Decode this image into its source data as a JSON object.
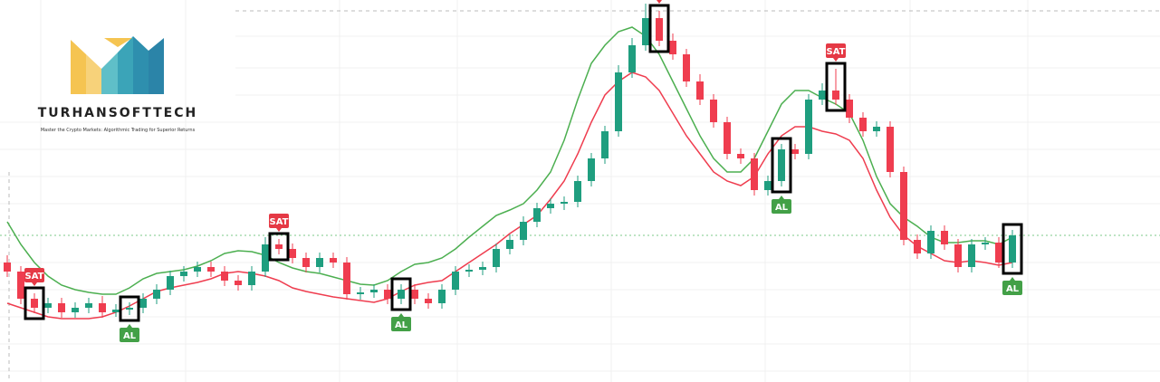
{
  "brand": {
    "name": "TURHANSOFTTECH",
    "tagline": "Master the Crypto Markets: Algorithmic Trading for Superior Returns"
  },
  "chart_data": {
    "type": "candlestick",
    "ylim": [
      0,
      422
    ],
    "up_color": "#1f9e7f",
    "down_color": "#ef3d4f",
    "candles": [
      [
        132,
        140,
        116,
        122
      ],
      [
        122,
        128,
        86,
        92
      ],
      [
        92,
        98,
        76,
        82
      ],
      [
        82,
        93,
        76,
        87
      ],
      [
        87,
        93,
        71,
        77
      ],
      [
        77,
        88,
        71,
        82
      ],
      [
        82,
        93,
        76,
        87
      ],
      [
        87,
        95,
        71,
        77
      ],
      [
        77,
        86,
        72,
        80
      ],
      [
        80,
        88,
        74,
        82
      ],
      [
        82,
        98,
        76,
        92
      ],
      [
        92,
        108,
        86,
        102
      ],
      [
        102,
        123,
        96,
        117
      ],
      [
        117,
        128,
        111,
        122
      ],
      [
        122,
        133,
        116,
        127
      ],
      [
        127,
        133,
        116,
        122
      ],
      [
        122,
        128,
        106,
        112
      ],
      [
        112,
        118,
        101,
        107
      ],
      [
        107,
        128,
        101,
        122
      ],
      [
        122,
        160,
        116,
        152
      ],
      [
        152,
        158,
        141,
        147
      ],
      [
        147,
        153,
        131,
        137
      ],
      [
        137,
        143,
        121,
        127
      ],
      [
        127,
        143,
        121,
        137
      ],
      [
        137,
        143,
        126,
        132
      ],
      [
        132,
        138,
        91,
        97
      ],
      [
        97,
        105,
        91,
        99
      ],
      [
        99,
        108,
        93,
        102
      ],
      [
        102,
        108,
        86,
        92
      ],
      [
        92,
        108,
        86,
        102
      ],
      [
        102,
        108,
        86,
        92
      ],
      [
        92,
        98,
        81,
        87
      ],
      [
        87,
        108,
        81,
        102
      ],
      [
        102,
        128,
        96,
        122
      ],
      [
        122,
        130,
        116,
        124
      ],
      [
        124,
        133,
        118,
        127
      ],
      [
        127,
        153,
        121,
        147
      ],
      [
        147,
        163,
        141,
        157
      ],
      [
        157,
        183,
        151,
        177
      ],
      [
        177,
        198,
        171,
        192
      ],
      [
        192,
        203,
        186,
        197
      ],
      [
        197,
        205,
        190,
        199
      ],
      [
        199,
        228,
        193,
        222
      ],
      [
        222,
        253,
        216,
        247
      ],
      [
        247,
        283,
        241,
        277
      ],
      [
        277,
        350,
        271,
        342
      ],
      [
        342,
        380,
        336,
        372
      ],
      [
        372,
        418,
        366,
        402
      ],
      [
        402,
        410,
        371,
        377
      ],
      [
        377,
        385,
        356,
        362
      ],
      [
        362,
        368,
        326,
        332
      ],
      [
        332,
        340,
        306,
        312
      ],
      [
        312,
        318,
        281,
        287
      ],
      [
        287,
        293,
        246,
        252
      ],
      [
        252,
        258,
        241,
        247
      ],
      [
        247,
        253,
        206,
        212
      ],
      [
        212,
        228,
        206,
        222
      ],
      [
        222,
        263,
        216,
        257
      ],
      [
        257,
        263,
        246,
        252
      ],
      [
        252,
        318,
        246,
        312
      ],
      [
        312,
        330,
        306,
        322
      ],
      [
        322,
        346,
        306,
        312
      ],
      [
        312,
        318,
        286,
        292
      ],
      [
        292,
        298,
        271,
        277
      ],
      [
        277,
        288,
        271,
        282
      ],
      [
        282,
        288,
        226,
        232
      ],
      [
        232,
        238,
        151,
        157
      ],
      [
        157,
        163,
        136,
        142
      ],
      [
        142,
        173,
        136,
        167
      ],
      [
        167,
        173,
        146,
        152
      ],
      [
        152,
        158,
        121,
        127
      ],
      [
        127,
        158,
        121,
        152
      ],
      [
        152,
        160,
        146,
        154
      ],
      [
        154,
        160,
        126,
        132
      ],
      [
        132,
        168,
        126,
        162
      ]
    ],
    "series": [
      {
        "color": "#4caf50",
        "values": [
          177,
          152,
          132,
          117,
          107,
          102,
          99,
          97,
          97,
          104,
          114,
          120,
          122,
          124,
          128,
          134,
          142,
          145,
          144,
          140,
          132,
          126,
          122,
          120,
          116,
          112,
          108,
          107,
          112,
          122,
          130,
          132,
          137,
          147,
          160,
          172,
          184,
          190,
          197,
          212,
          232,
          267,
          312,
          352,
          372,
          387,
          392,
          382,
          362,
          332,
          302,
          272,
          247,
          232,
          232,
          247,
          277,
          307,
          322,
          322,
          314,
          307,
          297,
          267,
          227,
          197,
          182,
          172,
          160,
          154,
          154,
          156,
          156,
          152,
          160
        ]
      },
      {
        "color": "#ef3d4f",
        "values": [
          87,
          82,
          77,
          72,
          70,
          70,
          70,
          72,
          77,
          84,
          92,
          100,
          104,
          107,
          110,
          114,
          120,
          122,
          120,
          117,
          112,
          104,
          100,
          97,
          94,
          92,
          90,
          88,
          92,
          100,
          107,
          110,
          112,
          122,
          132,
          142,
          152,
          164,
          174,
          184,
          202,
          222,
          252,
          287,
          317,
          332,
          342,
          337,
          322,
          297,
          272,
          252,
          232,
          222,
          217,
          227,
          252,
          272,
          282,
          282,
          277,
          274,
          267,
          247,
          212,
          182,
          162,
          150,
          142,
          134,
          132,
          134,
          132,
          129,
          132
        ]
      }
    ],
    "signals": [
      {
        "label": "SAT",
        "index": 2
      },
      {
        "label": "AL",
        "index": 9
      },
      {
        "label": "SAT",
        "index": 20
      },
      {
        "label": "AL",
        "index": 29
      },
      {
        "label": "SAT",
        "index": 48
      },
      {
        "label": "AL",
        "index": 57
      },
      {
        "label": "SAT",
        "index": 61
      },
      {
        "label": "AL",
        "index": 74
      }
    ]
  }
}
